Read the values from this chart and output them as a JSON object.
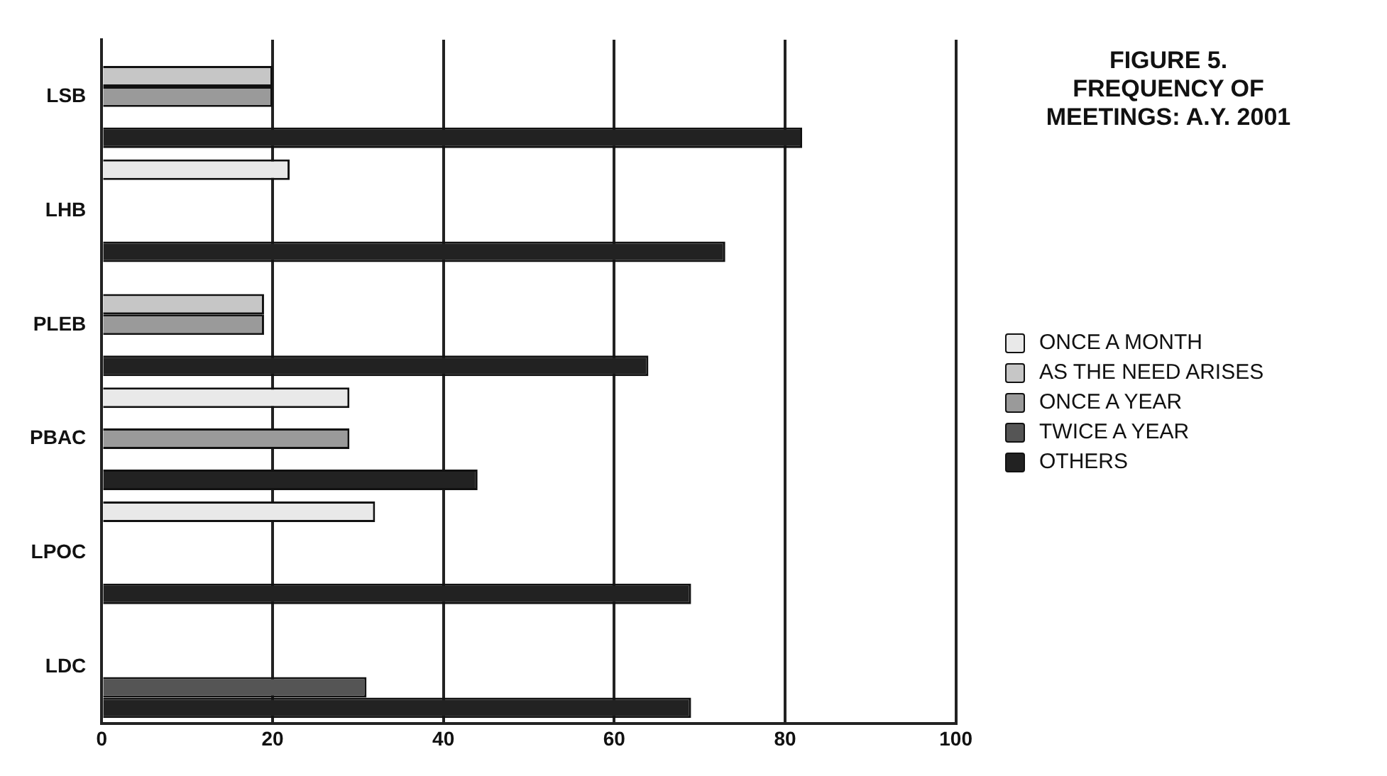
{
  "chart_data": {
    "type": "bar",
    "orientation": "horizontal",
    "title": "FIGURE 5.\nFREQUENCY OF\nMEETINGS: A.Y. 2001",
    "categories": [
      "LSB",
      "LHB",
      "PLEB",
      "PBAC",
      "LPOC",
      "LDC"
    ],
    "series": [
      {
        "name": "ONCE A MONTH",
        "color": "#e9e9e9",
        "values": [
          null,
          22,
          null,
          29,
          32,
          null
        ]
      },
      {
        "name": "AS THE NEED ARISES",
        "color": "#c6c6c6",
        "values": [
          20,
          null,
          19,
          null,
          null,
          null
        ]
      },
      {
        "name": "ONCE A YEAR",
        "color": "#9a9a9a",
        "values": [
          20,
          null,
          19,
          29,
          null,
          null
        ]
      },
      {
        "name": "TWICE A YEAR",
        "color": "#555555",
        "values": [
          null,
          null,
          null,
          null,
          null,
          31
        ]
      },
      {
        "name": "OTHERS",
        "color": "#222222",
        "values": [
          82,
          73,
          64,
          44,
          69,
          69
        ]
      }
    ],
    "xlim": [
      0,
      100
    ],
    "xticks": [
      0,
      20,
      40,
      60,
      80,
      100
    ],
    "grid": "x",
    "legend": "right"
  }
}
